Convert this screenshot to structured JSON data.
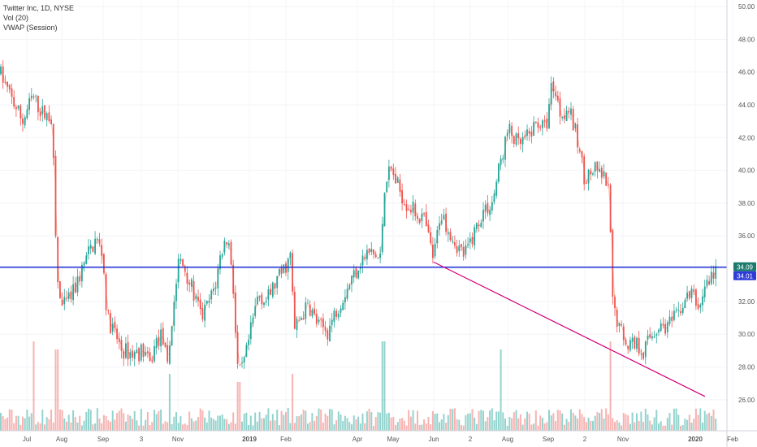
{
  "legend": {
    "symbol_line": "Twitter Inc, 1D, NYSE",
    "volume_line": "Vol (20)",
    "vwap_line": "VWAP (Session)"
  },
  "price_tags": {
    "last_price": "34.09",
    "vwap_price": "34.01"
  },
  "colors": {
    "up": "#26a69a",
    "down": "#ef5350",
    "horizontal_line": "#1e2fd6",
    "trend_line": "#d1007a",
    "vwap_line": "#f7a98a"
  },
  "chart_data": {
    "type": "candlestick",
    "y_axis": {
      "side": "right",
      "ylim": [
        25,
        50
      ],
      "tick_labels": [
        "26.00",
        "28.00",
        "30.00",
        "32.00",
        "34.00",
        "36.00",
        "38.00",
        "40.00",
        "42.00",
        "44.00",
        "46.00",
        "48.00",
        "50.00"
      ]
    },
    "x_axis": {
      "tick_labels": [
        "Jul",
        "Aug",
        "Sep",
        "3",
        "Nov",
        "2019",
        "Feb",
        "Apr",
        "May",
        "Jun",
        "2",
        "Aug",
        "Sep",
        "2",
        "Nov",
        "2020",
        "Feb"
      ]
    },
    "price_path": [
      [
        0,
        46.0
      ],
      [
        8,
        45.0
      ],
      [
        18,
        44.0
      ],
      [
        28,
        43.0
      ],
      [
        40,
        44.5
      ],
      [
        52,
        43.5
      ],
      [
        64,
        43.2
      ],
      [
        70,
        33.5
      ],
      [
        76,
        31.5
      ],
      [
        90,
        32.5
      ],
      [
        105,
        34.5
      ],
      [
        118,
        35.8
      ],
      [
        126,
        35.0
      ],
      [
        132,
        31.0
      ],
      [
        140,
        30.2
      ],
      [
        150,
        29.0
      ],
      [
        165,
        28.8
      ],
      [
        178,
        29.0
      ],
      [
        184,
        28.0
      ],
      [
        192,
        29.5
      ],
      [
        200,
        30.0
      ],
      [
        206,
        27.8
      ],
      [
        212,
        31.0
      ],
      [
        220,
        34.5
      ],
      [
        228,
        34.0
      ],
      [
        238,
        32.5
      ],
      [
        248,
        31.0
      ],
      [
        258,
        32.0
      ],
      [
        266,
        33.2
      ],
      [
        272,
        35.0
      ],
      [
        280,
        36.0
      ],
      [
        286,
        34.0
      ],
      [
        292,
        28.0
      ],
      [
        296,
        27.5
      ],
      [
        302,
        28.5
      ],
      [
        310,
        30.5
      ],
      [
        318,
        32.5
      ],
      [
        328,
        32.0
      ],
      [
        338,
        33.0
      ],
      [
        350,
        34.0
      ],
      [
        358,
        34.8
      ],
      [
        362,
        30.2
      ],
      [
        370,
        31.0
      ],
      [
        380,
        31.8
      ],
      [
        392,
        30.5
      ],
      [
        404,
        30.2
      ],
      [
        414,
        31.5
      ],
      [
        424,
        32.5
      ],
      [
        434,
        33.5
      ],
      [
        444,
        34.5
      ],
      [
        456,
        35.0
      ],
      [
        468,
        34.5
      ],
      [
        474,
        39.5
      ],
      [
        482,
        40.0
      ],
      [
        490,
        39.0
      ],
      [
        500,
        38.0
      ],
      [
        510,
        37.5
      ],
      [
        522,
        37.0
      ],
      [
        534,
        34.5
      ],
      [
        542,
        37.5
      ],
      [
        552,
        36.5
      ],
      [
        562,
        35.5
      ],
      [
        572,
        34.8
      ],
      [
        582,
        36.0
      ],
      [
        594,
        37.5
      ],
      [
        606,
        38.0
      ],
      [
        616,
        40.5
      ],
      [
        626,
        42.5
      ],
      [
        638,
        41.5
      ],
      [
        650,
        42.0
      ],
      [
        662,
        43.0
      ],
      [
        672,
        42.5
      ],
      [
        680,
        45.5
      ],
      [
        690,
        43.5
      ],
      [
        700,
        43.8
      ],
      [
        710,
        42.0
      ],
      [
        720,
        39.5
      ],
      [
        732,
        40.0
      ],
      [
        744,
        39.5
      ],
      [
        750,
        38.5
      ],
      [
        754,
        32.0
      ],
      [
        762,
        30.5
      ],
      [
        772,
        29.5
      ],
      [
        782,
        29.5
      ],
      [
        792,
        29.0
      ],
      [
        802,
        30.0
      ],
      [
        812,
        30.5
      ],
      [
        822,
        30.5
      ],
      [
        832,
        31.0
      ],
      [
        842,
        32.0
      ],
      [
        852,
        32.5
      ],
      [
        860,
        31.5
      ],
      [
        868,
        33.0
      ],
      [
        876,
        33.5
      ],
      [
        882,
        34.1
      ]
    ],
    "volume_spikes": [
      [
        42,
        0.55
      ],
      [
        70,
        0.5
      ],
      [
        208,
        0.35
      ],
      [
        294,
        0.3
      ],
      [
        360,
        0.35
      ],
      [
        472,
        0.55
      ],
      [
        616,
        0.5
      ],
      [
        752,
        0.55
      ]
    ],
    "horizontal_level": 34.09,
    "trend_line": {
      "from": [
        534,
        34.4
      ],
      "to": [
        868,
        26.2
      ]
    },
    "vwap_color": "#f7a98a"
  }
}
